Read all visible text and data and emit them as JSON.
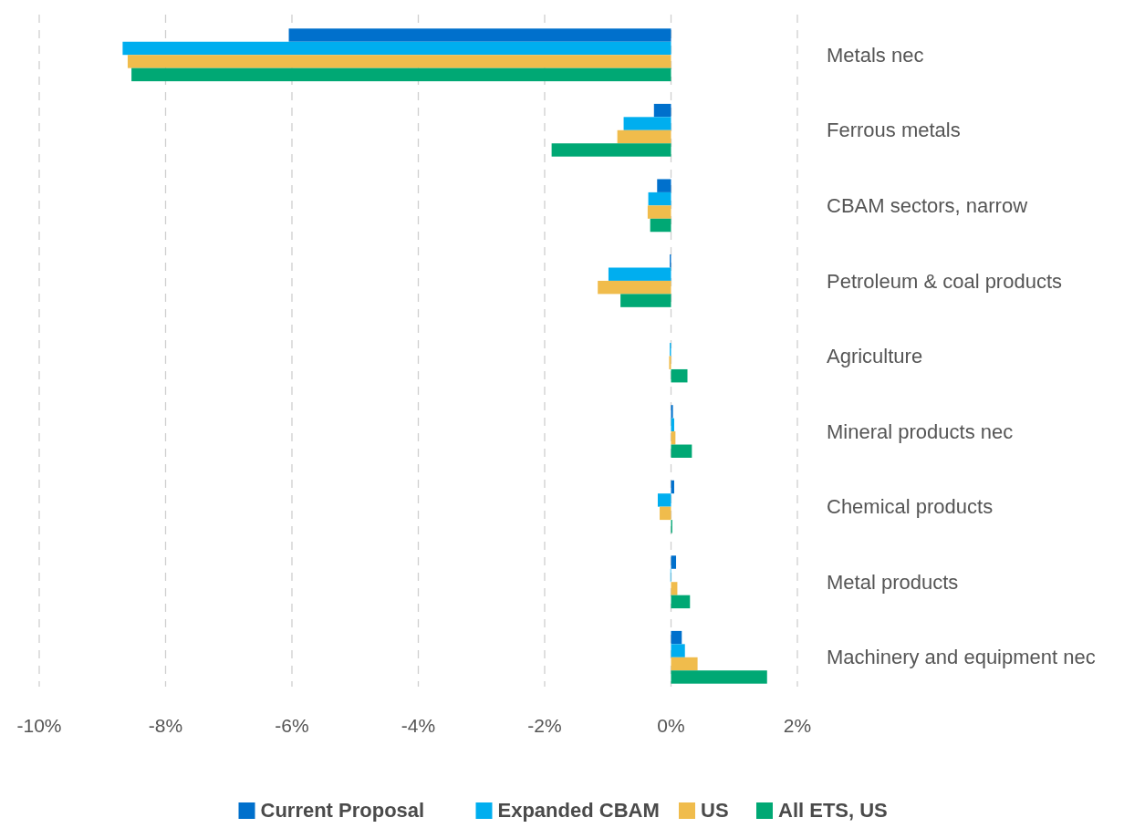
{
  "chart_data": {
    "type": "bar",
    "orientation": "horizontal",
    "categories": [
      "Metals nec",
      "Ferrous metals",
      "CBAM sectors, narrow",
      "Petroleum & coal products",
      "Agriculture",
      "Mineral products nec",
      "Chemical products",
      "Metal products",
      "Machinery and equipment nec"
    ],
    "series": [
      {
        "name": "Current Proposal",
        "color": "#0070cc",
        "values": [
          -6.05,
          -0.27,
          -0.22,
          -0.02,
          null,
          0.03,
          0.05,
          0.08,
          0.17
        ]
      },
      {
        "name": "Expanded CBAM",
        "color": "#00aeef",
        "values": [
          -8.68,
          -0.75,
          -0.36,
          -0.99,
          -0.02,
          0.05,
          -0.21,
          -0.01,
          0.22
        ]
      },
      {
        "name": "US",
        "color": "#f0bc4c",
        "values": [
          -8.6,
          -0.85,
          -0.37,
          -1.16,
          -0.03,
          0.07,
          -0.18,
          0.1,
          0.42
        ]
      },
      {
        "name": "All ETS, US",
        "color": "#00a874",
        "values": [
          -8.54,
          -1.89,
          -0.33,
          -0.8,
          0.26,
          0.33,
          0.02,
          0.3,
          1.52
        ]
      }
    ],
    "xlim": [
      -10,
      2
    ],
    "xticks": [
      {
        "value": -10,
        "label": "-10%"
      },
      {
        "value": -8,
        "label": "-8%"
      },
      {
        "value": -6,
        "label": "-6%"
      },
      {
        "value": -4,
        "label": "-4%"
      },
      {
        "value": -2,
        "label": "-2%"
      },
      {
        "value": 0,
        "label": "0%"
      },
      {
        "value": 2,
        "label": "2%"
      }
    ],
    "grid": "x",
    "legend": "bottom"
  }
}
